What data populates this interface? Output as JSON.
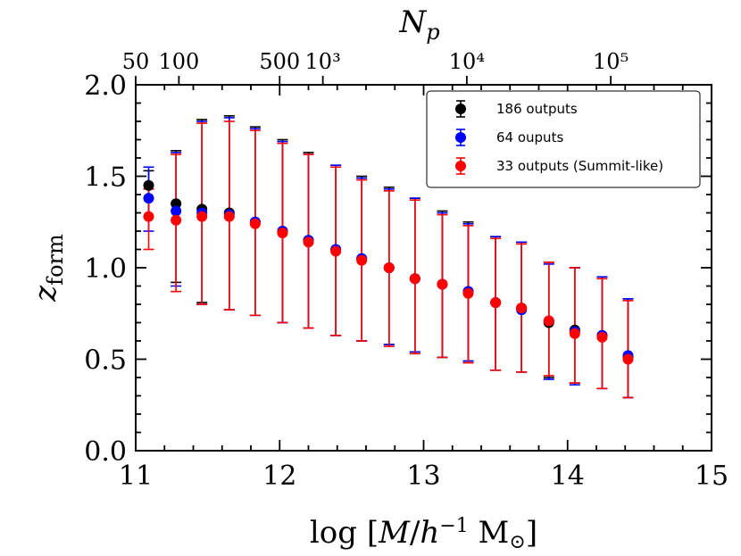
{
  "chart_data": {
    "type": "scatter",
    "title": "",
    "xlabel": "log [M/h⁻¹ M⊙]",
    "ylabel": "z_form",
    "top_axis_label": "N_p",
    "xlim": [
      11,
      15
    ],
    "ylim": [
      0.0,
      2.0
    ],
    "x_ticks": [
      11,
      12,
      13,
      14,
      15
    ],
    "x_tick_labels": [
      "11",
      "12",
      "13",
      "14",
      "15"
    ],
    "y_ticks": [
      0.0,
      0.5,
      1.0,
      1.5,
      2.0
    ],
    "y_tick_labels": [
      "0.0",
      "0.5",
      "1.0",
      "1.5",
      "2.0"
    ],
    "top_ticks": [
      {
        "logM": 11.0,
        "label": "50"
      },
      {
        "logM": 11.3,
        "label": "100"
      },
      {
        "logM": 12.0,
        "label": "500"
      },
      {
        "logM": 12.3,
        "label": "10³"
      },
      {
        "logM": 13.3,
        "label": "10⁴"
      },
      {
        "logM": 14.3,
        "label": "10⁵"
      }
    ],
    "legend_position": "top-right",
    "x": [
      11.09,
      11.28,
      11.46,
      11.65,
      11.83,
      12.02,
      12.2,
      12.39,
      12.57,
      12.76,
      12.94,
      13.13,
      13.31,
      13.5,
      13.68,
      13.87,
      14.05,
      14.24,
      14.42
    ],
    "series": [
      {
        "name": "186 outputs",
        "color": "#000000",
        "values": [
          1.45,
          1.35,
          1.32,
          1.3,
          1.25,
          1.2,
          1.15,
          1.1,
          1.05,
          1.0,
          0.94,
          0.91,
          0.87,
          0.81,
          0.78,
          0.7,
          0.66,
          0.63,
          0.51
        ],
        "err_low": [
          1.28,
          0.92,
          0.81,
          0.77,
          0.74,
          0.7,
          0.67,
          0.63,
          0.6,
          0.58,
          0.54,
          0.51,
          0.49,
          0.44,
          0.43,
          0.4,
          0.37,
          0.34,
          0.29
        ],
        "err_high": [
          1.53,
          1.64,
          1.81,
          1.83,
          1.77,
          1.7,
          1.63,
          1.56,
          1.5,
          1.44,
          1.38,
          1.31,
          1.25,
          1.17,
          1.14,
          1.03,
          1.0,
          0.95,
          0.83
        ]
      },
      {
        "name": "64 ouputs",
        "color": "#0000ff",
        "values": [
          1.38,
          1.31,
          1.3,
          1.29,
          1.25,
          1.2,
          1.15,
          1.1,
          1.05,
          1.0,
          0.94,
          0.91,
          0.87,
          0.81,
          0.77,
          0.71,
          0.65,
          0.63,
          0.52
        ],
        "err_low": [
          1.2,
          0.9,
          0.8,
          0.77,
          0.74,
          0.7,
          0.67,
          0.63,
          0.6,
          0.58,
          0.54,
          0.51,
          0.49,
          0.44,
          0.43,
          0.39,
          0.36,
          0.34,
          0.29
        ],
        "err_high": [
          1.55,
          1.63,
          1.8,
          1.82,
          1.76,
          1.69,
          1.62,
          1.56,
          1.49,
          1.43,
          1.38,
          1.3,
          1.24,
          1.17,
          1.14,
          1.02,
          1.0,
          0.95,
          0.83
        ]
      },
      {
        "name": "33 outputs (Summit-like)",
        "color": "#ff0000",
        "values": [
          1.28,
          1.26,
          1.28,
          1.28,
          1.24,
          1.19,
          1.14,
          1.09,
          1.04,
          1.0,
          0.94,
          0.91,
          0.86,
          0.81,
          0.78,
          0.71,
          0.64,
          0.62,
          0.5
        ],
        "err_low": [
          1.1,
          0.87,
          0.8,
          0.77,
          0.74,
          0.7,
          0.67,
          0.63,
          0.6,
          0.57,
          0.53,
          0.51,
          0.48,
          0.44,
          0.43,
          0.41,
          0.37,
          0.34,
          0.29
        ],
        "err_high": [
          1.43,
          1.62,
          1.79,
          1.8,
          1.75,
          1.68,
          1.62,
          1.55,
          1.48,
          1.42,
          1.37,
          1.29,
          1.23,
          1.16,
          1.13,
          1.03,
          1.0,
          0.94,
          0.82
        ]
      }
    ]
  }
}
